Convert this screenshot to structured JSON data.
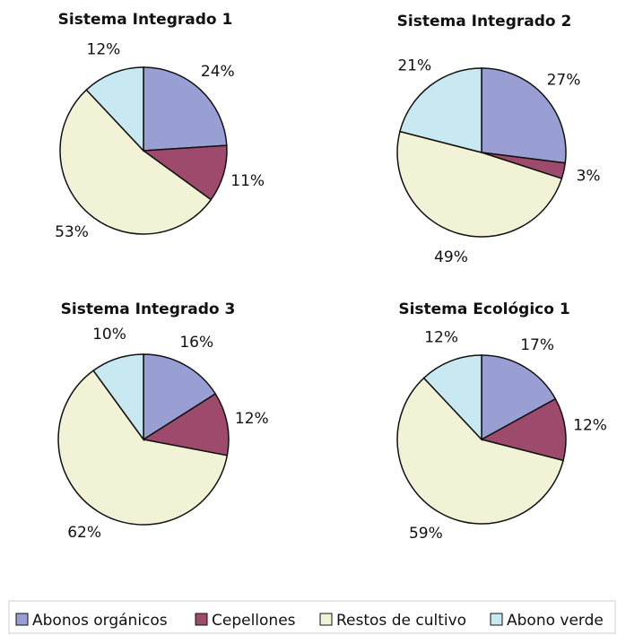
{
  "chart_data": [
    {
      "type": "pie",
      "title": "Sistema Integrado 1",
      "categories": [
        "Abonos orgánicos",
        "Cepellones",
        "Restos de cultivo",
        "Abono verde"
      ],
      "values": [
        24,
        11,
        53,
        12
      ],
      "value_labels": [
        "24%",
        "11%",
        "53%",
        "12%"
      ],
      "colors": [
        "#9a9fd3",
        "#9e4a6c",
        "#f2f2d6",
        "#c8e9f2"
      ]
    },
    {
      "type": "pie",
      "title": "Sistema Integrado 2",
      "categories": [
        "Abonos orgánicos",
        "Cepellones",
        "Restos de cultivo",
        "Abono verde"
      ],
      "values": [
        27,
        3,
        49,
        21
      ],
      "value_labels": [
        "27%",
        "3%",
        "49%",
        "21%"
      ],
      "colors": [
        "#9a9fd3",
        "#9e4a6c",
        "#f2f2d6",
        "#c8e9f2"
      ]
    },
    {
      "type": "pie",
      "title": "Sistema Integrado 3",
      "categories": [
        "Abonos orgánicos",
        "Cepellones",
        "Restos de cultivo",
        "Abono verde"
      ],
      "values": [
        16,
        12,
        62,
        10
      ],
      "value_labels": [
        "16%",
        "12%",
        "62%",
        "10%"
      ],
      "colors": [
        "#9a9fd3",
        "#9e4a6c",
        "#f2f2d6",
        "#c8e9f2"
      ]
    },
    {
      "type": "pie",
      "title": "Sistema Ecológico 1",
      "categories": [
        "Abonos orgánicos",
        "Cepellones",
        "Restos de cultivo",
        "Abono verde"
      ],
      "values": [
        17,
        12,
        59,
        12
      ],
      "value_labels": [
        "17%",
        "12%",
        "59%",
        "12%"
      ],
      "colors": [
        "#9a9fd3",
        "#9e4a6c",
        "#f2f2d6",
        "#c8e9f2"
      ]
    }
  ]
}
